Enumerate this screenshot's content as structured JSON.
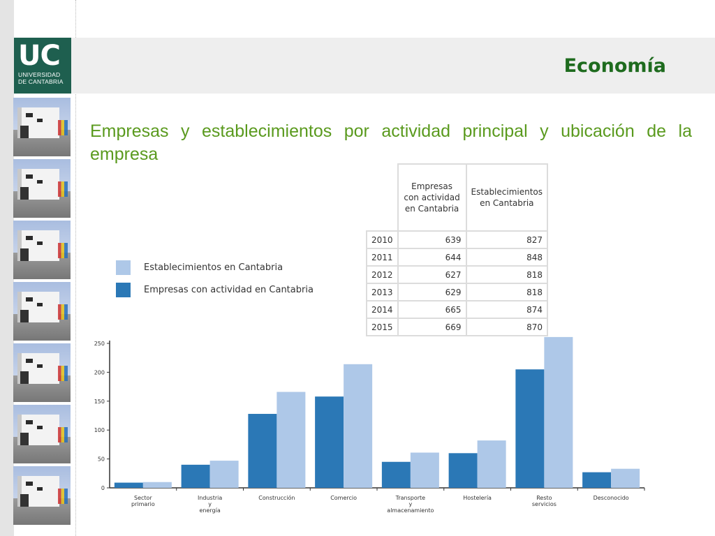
{
  "slide": {
    "section_title": "Economía",
    "subtitle": "Empresas y establecimientos por actividad principal y ubicación de la empresa"
  },
  "logo": {
    "text": "UC",
    "line1": "UNIVERSIDAD",
    "line2": "DE CANTABRIA"
  },
  "colors": {
    "dark_bar": "#2b78b6",
    "light_bar": "#aec8e8",
    "title_green": "#1e6b1e",
    "subtitle_green": "#5a9a1e",
    "logo_bg": "#1e5f4f"
  },
  "table": {
    "headers": [
      "Empresas con actividad en Cantabria",
      "Establecimientos en Cantabria"
    ],
    "rows": [
      {
        "year": "2010",
        "empresas": "639",
        "establecimientos": "827"
      },
      {
        "year": "2011",
        "empresas": "644",
        "establecimientos": "848"
      },
      {
        "year": "2012",
        "empresas": "627",
        "establecimientos": "818"
      },
      {
        "year": "2013",
        "empresas": "629",
        "establecimientos": "818"
      },
      {
        "year": "2014",
        "empresas": "665",
        "establecimientos": "874"
      },
      {
        "year": "2015",
        "empresas": "669",
        "establecimientos": "870"
      }
    ]
  },
  "chart_data": {
    "type": "bar",
    "categories": [
      "Sector primario",
      "Industria y energía",
      "Construcción",
      "Comercio",
      "Transporte y almacenamiento",
      "Hostelería",
      "Resto servicios",
      "Desconocido"
    ],
    "category_lines": [
      [
        "Sector",
        "primario"
      ],
      [
        "Industria",
        "y",
        "energía"
      ],
      [
        "Construcción"
      ],
      [
        "Comercio"
      ],
      [
        "Transporte",
        "y",
        "almacenamiento"
      ],
      [
        "Hostelería"
      ],
      [
        "Resto",
        "servicios"
      ],
      [
        "Desconocido"
      ]
    ],
    "series": [
      {
        "name": "Empresas con actividad en Cantabria",
        "values": [
          9,
          40,
          128,
          158,
          45,
          60,
          205,
          27
        ]
      },
      {
        "name": "Establecimientos en Cantabria",
        "values": [
          10,
          47,
          166,
          214,
          61,
          82,
          261,
          33
        ]
      }
    ],
    "ylim": [
      0,
      250
    ],
    "yticks": [
      0,
      50,
      100,
      150,
      200,
      250
    ],
    "legend_position": "top-left",
    "grid": false
  }
}
